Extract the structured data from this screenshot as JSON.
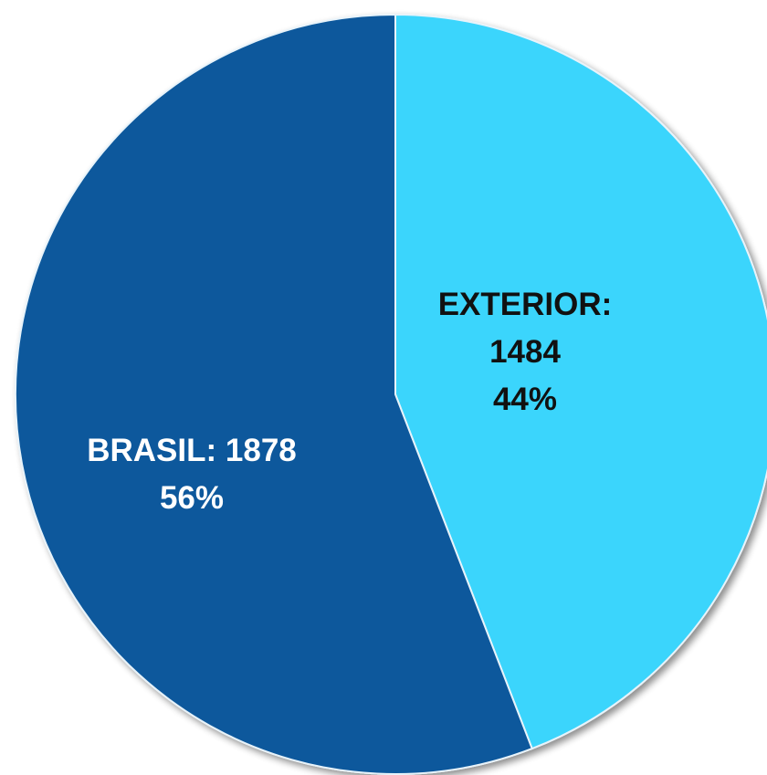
{
  "chart_data": {
    "type": "pie",
    "title": "",
    "start_angle_deg": 0,
    "direction": "clockwise",
    "slices": [
      {
        "name": "EXTERIOR",
        "value": 1484,
        "percent_label": "44%",
        "label_lines": [
          "EXTERIOR:",
          "1484",
          "44%"
        ],
        "color": "#3ad5fc",
        "label_color": "#111111"
      },
      {
        "name": "BRASIL",
        "value": 1878,
        "percent_label": "56%",
        "label_lines": [
          "BRASIL:  1878",
          "56%"
        ],
        "color": "#0a589c",
        "label_color": "#ffffff"
      }
    ]
  },
  "colors": {
    "background": "#ffffff",
    "slice_border": "#e8f3fa",
    "shadow": "#9aa4ad"
  }
}
